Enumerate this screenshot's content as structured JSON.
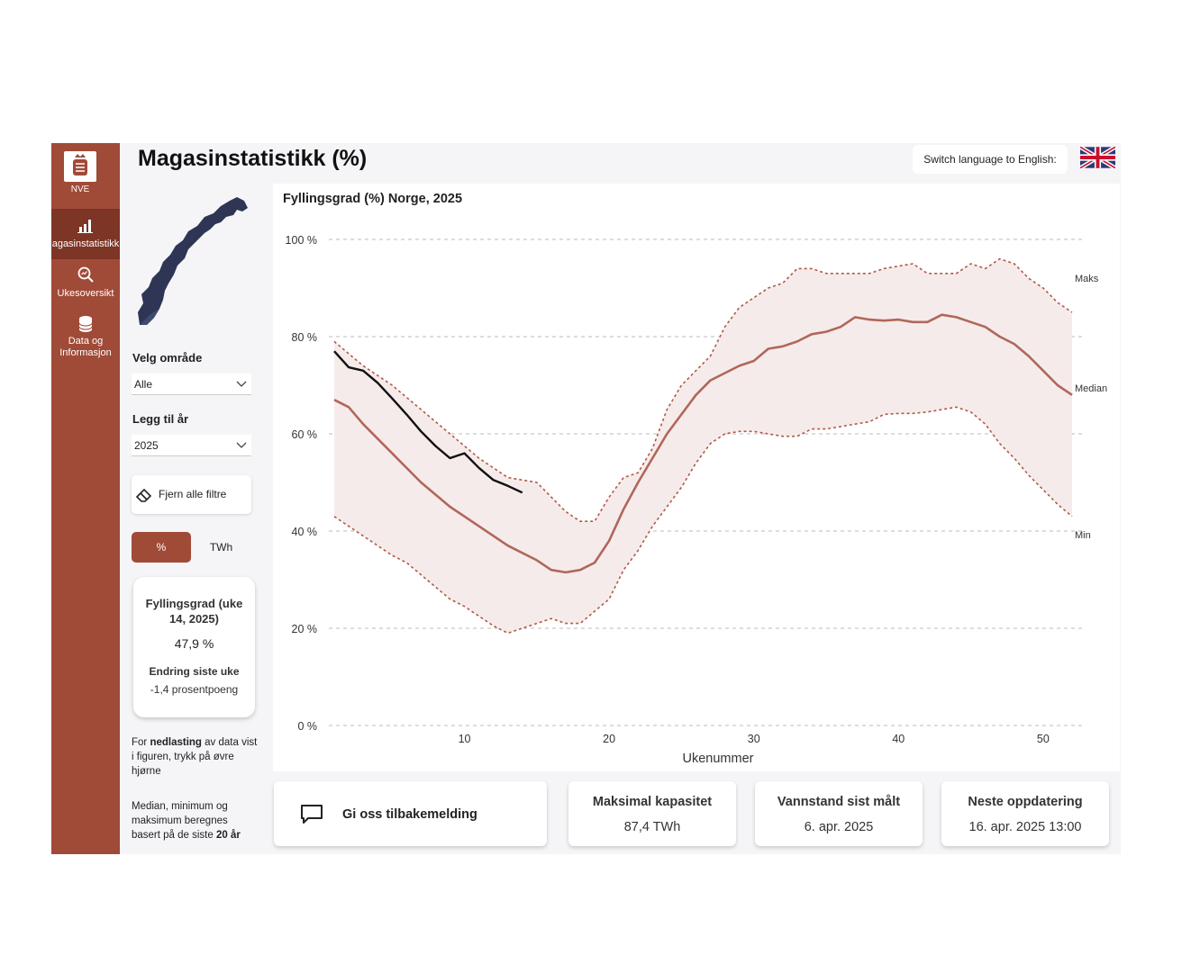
{
  "app": {
    "title": "Magasinstatistikk (%)"
  },
  "nav": {
    "logo_text": "NVE",
    "items": [
      {
        "label": "agasinstatistikk",
        "icon": "bar-chart-icon"
      },
      {
        "label": "Ukesoversikt",
        "icon": "magnifier-chart-icon"
      },
      {
        "label_line1": "Data og",
        "label_line2": "Informasjon",
        "icon": "database-icon"
      }
    ]
  },
  "header": {
    "lang_label": "Switch language to English:",
    "flag": "uk-flag-icon"
  },
  "filters": {
    "area_label": "Velg område",
    "area_value": "Alle",
    "year_label": "Legg til år",
    "year_value": "2025",
    "clear_label": "Fjern alle filtre",
    "unit_pct": "%",
    "unit_twh": "TWh"
  },
  "kpi": {
    "fill_title": "Fyllingsgrad (uke 14, 2025)",
    "fill_value": "47,9 %",
    "change_title": "Endring siste uke",
    "change_value": "-1,4 prosentpoeng"
  },
  "notes": {
    "download_pre": "For ",
    "download_bold": "nedlasting",
    "download_post": " av data vist i figuren, trykk på øvre hjørne",
    "median_pre": "Median, minimum og maksimum beregnes basert på de siste ",
    "median_bold": "20 år"
  },
  "chart_data": {
    "type": "line",
    "title": "Fyllingsgrad (%) Norge, 2025",
    "xlabel": "Ukenummer",
    "ylabel": "",
    "xlim": [
      1,
      52
    ],
    "ylim": [
      0,
      100
    ],
    "xticks": [
      10,
      20,
      30,
      40,
      50
    ],
    "yticks": [
      0,
      20,
      40,
      60,
      80,
      100
    ],
    "ytick_labels": [
      "0 %",
      "20 %",
      "40 %",
      "60 %",
      "80 %",
      "100 %"
    ],
    "grid": true,
    "series": [
      {
        "name": "Maks",
        "style": "dotted",
        "color": "#b05a45",
        "x": [
          1,
          3,
          5,
          7,
          9,
          11,
          13,
          15,
          16,
          17,
          18,
          19,
          20,
          21,
          22,
          23,
          24,
          25,
          26,
          27,
          28,
          29,
          30,
          31,
          32,
          33,
          34,
          35,
          36,
          37,
          38,
          39,
          40,
          41,
          42,
          43,
          44,
          45,
          46,
          47,
          48,
          49,
          50,
          51,
          52
        ],
        "y": [
          79,
          74,
          70,
          65,
          60,
          55,
          51,
          50,
          47,
          44,
          42,
          42,
          47,
          51,
          52,
          57,
          65,
          70,
          73,
          76,
          82,
          86,
          88,
          90,
          91,
          94,
          94,
          93,
          93,
          93,
          93,
          94,
          94.5,
          95,
          93,
          93,
          93,
          95,
          94,
          96,
          95,
          92,
          90,
          87,
          85
        ]
      },
      {
        "name": "Median",
        "style": "solid",
        "color": "#b0675a",
        "x": [
          1,
          2,
          3,
          5,
          7,
          9,
          11,
          13,
          15,
          16,
          17,
          18,
          19,
          20,
          21,
          22,
          23,
          24,
          25,
          26,
          27,
          28,
          29,
          30,
          31,
          32,
          33,
          34,
          35,
          36,
          37,
          38,
          39,
          40,
          41,
          42,
          43,
          44,
          45,
          46,
          47,
          48,
          49,
          50,
          51,
          52
        ],
        "y": [
          67,
          65.5,
          62,
          56,
          50,
          45,
          41,
          37,
          34,
          32,
          31.5,
          32,
          33.5,
          38,
          44.5,
          50,
          55,
          60,
          64,
          68,
          71,
          72.5,
          74,
          75,
          77.5,
          78,
          79,
          80.5,
          81,
          82,
          84,
          83.5,
          83.3,
          83.5,
          83,
          83,
          84.5,
          84,
          83,
          82,
          80,
          78.5,
          76,
          73,
          70,
          68
        ]
      },
      {
        "name": "Min",
        "style": "dotted",
        "color": "#b05a45",
        "x": [
          1,
          2,
          3,
          4,
          5,
          6,
          7,
          8,
          9,
          10,
          11,
          12,
          13,
          14,
          15,
          16,
          17,
          18,
          19,
          20,
          21,
          22,
          23,
          24,
          25,
          26,
          27,
          28,
          29,
          30,
          31,
          32,
          33,
          34,
          35,
          36,
          37,
          38,
          39,
          40,
          41,
          42,
          43,
          44,
          45,
          46,
          47,
          48,
          49,
          50,
          51,
          52
        ],
        "y": [
          43,
          41,
          39,
          37,
          35,
          33.5,
          31,
          28.5,
          26,
          24.5,
          22.5,
          20.5,
          19,
          20,
          21,
          22,
          21,
          21,
          23.5,
          26,
          32,
          36,
          41,
          45,
          49,
          54,
          58,
          60,
          60.5,
          60.5,
          60,
          59.5,
          59.5,
          61,
          61,
          61.5,
          62,
          62.5,
          64,
          64.2,
          64.2,
          64.5,
          65,
          65.5,
          64.5,
          62,
          58,
          55,
          51.5,
          48.5,
          45.5,
          43
        ]
      },
      {
        "name": "2025",
        "style": "solid",
        "color": "#111111",
        "x": [
          1,
          2,
          3,
          4,
          5,
          6,
          7,
          8,
          9,
          10,
          11,
          12,
          13,
          14
        ],
        "y": [
          77,
          73.7,
          73,
          70.5,
          67.3,
          64,
          60.5,
          57.5,
          55,
          56,
          53,
          50.5,
          49.3,
          47.9
        ]
      }
    ],
    "band": {
      "between": [
        "Min",
        "Maks"
      ],
      "color": "#f6ebeb"
    },
    "line_labels": [
      "Maks",
      "Median",
      "Min"
    ]
  },
  "cards": {
    "feedback_label": "Gi oss tilbakemelding",
    "capacity_title": "Maksimal kapasitet",
    "capacity_value": "87,4 TWh",
    "measured_title": "Vannstand sist målt",
    "measured_value": "6. apr. 2025",
    "update_title": "Neste oppdatering",
    "update_value": "16. apr. 2025 13:00"
  }
}
